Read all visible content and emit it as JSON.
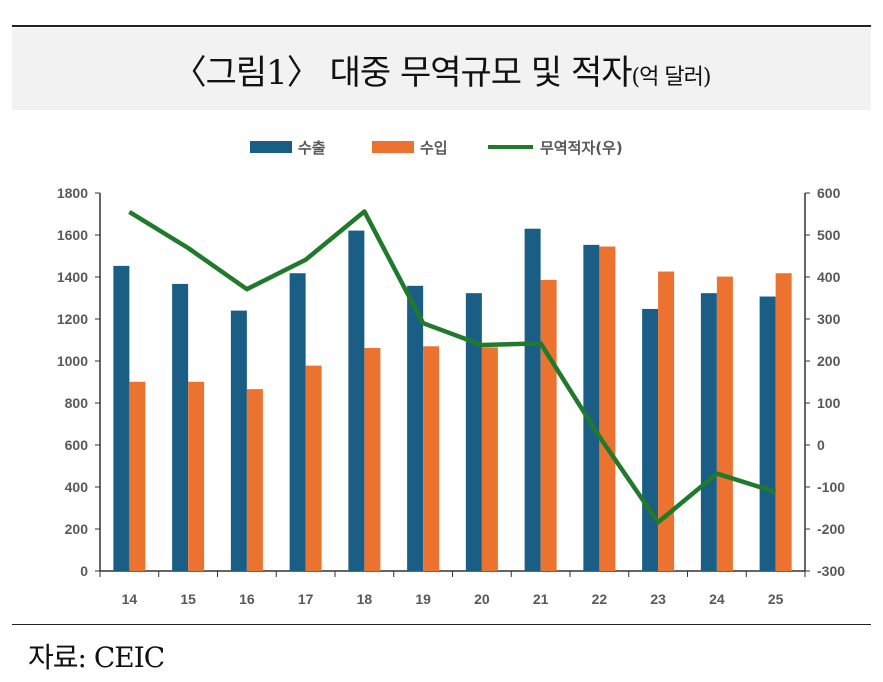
{
  "title": {
    "main": "〈그림1〉 대중 무역규모 및 적자",
    "unit": "(억 달러)"
  },
  "source": "자료: CEIC",
  "colors": {
    "exports": "#1a5e85",
    "imports": "#ec7230",
    "balance": "#217a2c"
  },
  "chart_data": {
    "type": "bar",
    "title": "대중 무역규모 및 적자",
    "categories": [
      "14",
      "15",
      "16",
      "17",
      "18",
      "19",
      "20",
      "21",
      "22",
      "23",
      "24",
      "25"
    ],
    "series": [
      {
        "name": "수출",
        "type": "bar",
        "axis": "left",
        "values": [
          1453,
          1367,
          1240,
          1418,
          1621,
          1358,
          1323,
          1630,
          1553,
          1248,
          1323,
          1307
        ]
      },
      {
        "name": "수입",
        "type": "bar",
        "axis": "left",
        "values": [
          901,
          901,
          866,
          978,
          1062,
          1070,
          1065,
          1386,
          1545,
          1426,
          1402,
          1418
        ]
      },
      {
        "name": "무역적자(우)",
        "type": "line",
        "axis": "right",
        "values": [
          555,
          469,
          371,
          441,
          556,
          290,
          238,
          242,
          20,
          -184,
          -68,
          -112
        ]
      }
    ],
    "y_left": {
      "ylim": [
        0,
        1800
      ],
      "ticks": [
        0,
        200,
        400,
        600,
        800,
        1000,
        1200,
        1400,
        1600,
        1800
      ]
    },
    "y_right": {
      "ylim": [
        -300,
        600
      ],
      "ticks": [
        -300,
        -200,
        -100,
        0,
        100,
        200,
        300,
        400,
        500,
        600
      ]
    },
    "legend": "top",
    "grid": false
  }
}
